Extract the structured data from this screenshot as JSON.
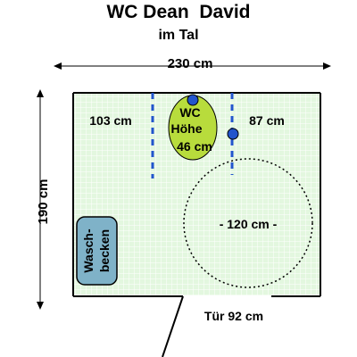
{
  "title": "WC Dean  David",
  "subtitle": "im Tal",
  "width_label": "230 cm",
  "height_label": "190 cm",
  "left_space_label": "103 cm",
  "right_space_label": "87 cm",
  "wc_label_lines": [
    "WC",
    "Höhe",
    "46 cm"
  ],
  "turning_circle_label": "- 120 cm -",
  "sink_label_lines": [
    "Wasch-",
    "becken"
  ],
  "door_label": "Tür 92 cm",
  "colors": {
    "floor": "#e3f7df",
    "grid": "#ffffff",
    "wall": "#000000",
    "wc_fill": "#b8dc3c",
    "sink_fill": "#7fb2c8",
    "marker": "#2255cc"
  }
}
